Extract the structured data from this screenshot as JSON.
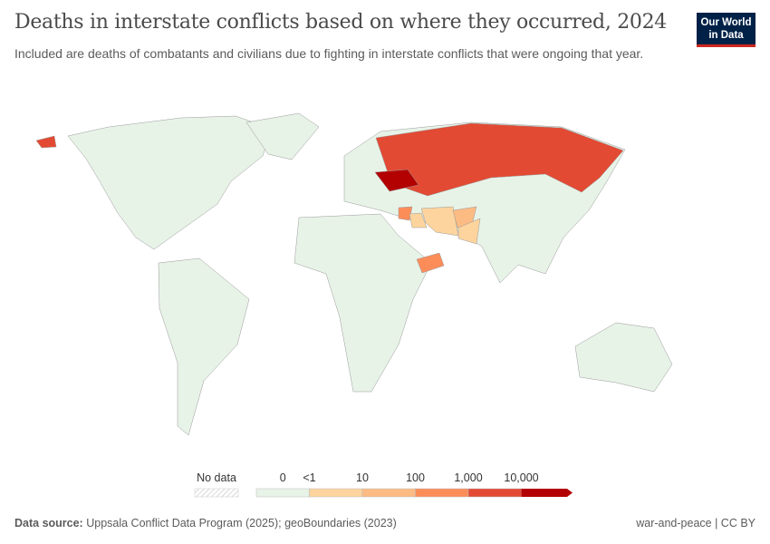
{
  "header": {
    "title": "Deaths in interstate conflicts based on where they occurred, 2024",
    "subtitle": "Included are deaths of combatants and civilians due to fighting in interstate conflicts that were ongoing that year.",
    "logo_text": "Our World in Data"
  },
  "chart_data": {
    "type": "map",
    "title": "Deaths in interstate conflicts based on where they occurred, 2024",
    "legend": {
      "no_data_label": "No data",
      "bins": [
        "0",
        "<1",
        "10",
        "100",
        "1,000",
        "10,000"
      ],
      "colors": [
        "#e8f3e8",
        "#fdd49e",
        "#fdbb84",
        "#fc8d59",
        "#e34a33",
        "#b30000"
      ]
    },
    "countries": [
      {
        "name": "Ukraine",
        "bin": "10,000+"
      },
      {
        "name": "Russia",
        "bin": "1,000–10,000"
      },
      {
        "name": "Syria",
        "bin": "100–1,000"
      },
      {
        "name": "Yemen",
        "bin": "100–1,000"
      },
      {
        "name": "Afghanistan",
        "bin": "10–100"
      },
      {
        "name": "Iran",
        "bin": "<1–10"
      },
      {
        "name": "Iraq",
        "bin": "<1–10"
      },
      {
        "name": "Pakistan",
        "bin": "<1–10"
      },
      {
        "name": "Rest of world",
        "bin": "0"
      }
    ]
  },
  "footer": {
    "source_label": "Data source:",
    "source": "Uppsala Conflict Data Program (2025); geoBoundaries (2023)",
    "license": "war-and-peace | CC BY"
  }
}
